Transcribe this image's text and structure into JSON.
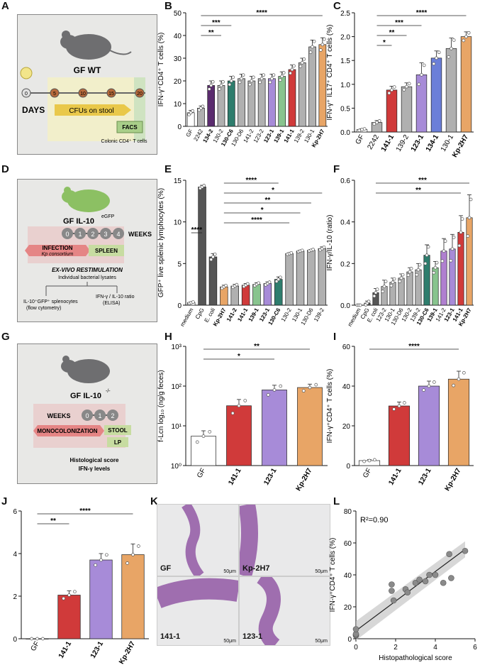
{
  "panel_labels": {
    "A": "A",
    "B": "B",
    "C": "C",
    "D": "D",
    "E": "E",
    "F": "F",
    "G": "G",
    "H": "H",
    "I": "I",
    "J": "J",
    "K": "K",
    "L": "L"
  },
  "schematic_A": {
    "title": "GF WT",
    "days_label": "DAYS",
    "timeline": [
      "0",
      "5",
      "10",
      "15",
      "20"
    ],
    "cfu_label": "CFUs on stool",
    "facs_label": "FACS",
    "facs_note": "Colonic CD4⁺ T cells"
  },
  "schematic_D": {
    "title": "GF IL-10",
    "title_sup": "eGFP",
    "weeks_label": "WEEKS",
    "weeks": [
      "0",
      "1",
      "2",
      "3",
      "4"
    ],
    "infection_label": "INFECTION",
    "infection_sub": "Kp consortium",
    "spleen_label": "SPLEEN",
    "exvivo_label": "EX-VIVO RESTIMULATION",
    "exvivo_sub": "Individual bacterial lysates",
    "left_out": "IL-10⁺GFP⁺ splenocytes",
    "left_out_sub": "(flow cytometry)",
    "right_out": "IFN-γ / IL-10 ratio",
    "right_out_sub": "(ELISA)"
  },
  "schematic_G": {
    "title": "GF IL-10",
    "title_sup": "-/-",
    "weeks_label": "WEEKS",
    "weeks": [
      "0",
      "1",
      "2"
    ],
    "mono_label": "MONOCOLONIZATION",
    "stool_label": "STOOL",
    "lp_label": "LP",
    "out1": "Histological score",
    "out2": "IFN-γ levels"
  },
  "histology_K": {
    "labels": [
      "GF",
      "Kp-2H7",
      "141-1",
      "123-1"
    ],
    "scale": "50μm"
  },
  "chart_data": [
    {
      "id": "B",
      "type": "bar",
      "ylabel": "IFN-γ⁺CD4⁺ T cells (%)",
      "ylim": [
        0,
        50
      ],
      "yticks": [
        "0",
        "10",
        "20",
        "30",
        "40",
        "50"
      ],
      "categories": [
        "GF",
        "2242",
        "134-2",
        "130-2",
        "130-C6",
        "130-D6",
        "141-2",
        "123-2",
        "123-1",
        "139-1",
        "141-1",
        "139-2",
        "130-1",
        "Kp-2H7"
      ],
      "bold": [
        "134-2",
        "130-C6",
        "123-1",
        "139-1",
        "141-1",
        "Kp-2H7"
      ],
      "values": [
        6,
        8,
        18,
        18,
        20,
        21,
        20,
        21,
        21,
        22,
        25,
        28,
        35,
        36
      ],
      "errors": [
        1,
        1,
        2,
        2,
        2,
        2,
        2,
        2,
        2,
        2,
        2,
        2,
        3,
        3
      ],
      "colors": [
        "#ffffff",
        "#b0b0b0",
        "#5b2c6f",
        "#b0b0b0",
        "#2e7d6d",
        "#b0b0b0",
        "#b0b0b0",
        "#b0b0b0",
        "#a78bd8",
        "#88c48e",
        "#d03a3a",
        "#b0b0b0",
        "#b0b0b0",
        "#e8a566"
      ],
      "sig": [
        {
          "from": 1,
          "to": 3,
          "text": "**"
        },
        {
          "from": 1,
          "to": 4,
          "text": "***"
        },
        {
          "from": 1,
          "to": 13,
          "text": "****"
        }
      ]
    },
    {
      "id": "C",
      "type": "bar",
      "ylabel": "IFN-γ⁺ IL17⁺ CD4⁺ T cells (%)",
      "ylim": [
        0,
        2.5
      ],
      "yticks": [
        "0.0",
        "0.5",
        "1.0",
        "1.5",
        "2.0",
        "2.5"
      ],
      "categories": [
        "GF",
        "2242",
        "141-1",
        "139-2",
        "123-1",
        "134-1",
        "130-1",
        "Kp-2H7"
      ],
      "bold": [
        "141-1",
        "123-1",
        "134-1",
        "Kp-2H7"
      ],
      "values": [
        0.05,
        0.2,
        0.88,
        0.95,
        1.2,
        1.55,
        1.75,
        2.0
      ],
      "errors": [
        0.02,
        0.04,
        0.08,
        0.08,
        0.25,
        0.15,
        0.22,
        0.1
      ],
      "colors": [
        "#ffffff",
        "#b0b0b0",
        "#d03a3a",
        "#b0b0b0",
        "#a78bd8",
        "#6b7fd8",
        "#b0b0b0",
        "#e8a566"
      ],
      "sig": [
        {
          "from": 1,
          "to": 2,
          "text": "*"
        },
        {
          "from": 1,
          "to": 3,
          "text": "**"
        },
        {
          "from": 1,
          "to": 4,
          "text": "***"
        },
        {
          "from": 1,
          "to": 7,
          "text": "****"
        }
      ]
    },
    {
      "id": "E",
      "type": "bar",
      "ylabel": "GFP⁺ live splenic lymphocytes (%)",
      "ylim": [
        0,
        15
      ],
      "yticks": [
        "0",
        "5",
        "10",
        "15"
      ],
      "categories": [
        "medium",
        "CpG",
        "E. coli",
        "Kp-2H7",
        "141-2",
        "141-1",
        "139-1",
        "123-1",
        "130-C6",
        "130-2",
        "130-1",
        "130-D6",
        "139-2"
      ],
      "bold": [
        "Kp-2H7",
        "141-2",
        "141-1",
        "139-1",
        "123-1",
        "130-C6"
      ],
      "values": [
        0.3,
        14.2,
        5.8,
        2.2,
        2.3,
        2.4,
        2.5,
        2.6,
        3.1,
        6.2,
        6.5,
        6.6,
        6.8
      ],
      "errors": [
        0.1,
        0.2,
        0.4,
        0.2,
        0.2,
        0.2,
        0.2,
        0.2,
        0.3,
        0.1,
        0.1,
        0.1,
        0.2
      ],
      "colors": [
        "#ffffff",
        "#555555",
        "#555555",
        "#e8a566",
        "#b0b0b0",
        "#d03a3a",
        "#88c48e",
        "#a78bd8",
        "#2e7d6d",
        "#b0b0b0",
        "#b0b0b0",
        "#b0b0b0",
        "#b0b0b0"
      ],
      "sig": [
        {
          "from": 0,
          "to": 1,
          "text": "****"
        },
        {
          "from": 3,
          "to": 9,
          "text": "****"
        },
        {
          "from": 3,
          "to": 10,
          "text": "*"
        },
        {
          "from": 3,
          "to": 11,
          "text": "**"
        },
        {
          "from": 3,
          "to": 12,
          "text": "*"
        },
        {
          "from": 3,
          "to": 8,
          "text": "****"
        }
      ]
    },
    {
      "id": "F",
      "type": "bar",
      "ylabel": "IFN-γ/IL-10 (ratio)",
      "ylim": [
        0,
        0.6
      ],
      "yticks": [
        "0.0",
        "0.2",
        "0.4",
        "0.6"
      ],
      "categories": [
        "medium",
        "CpG",
        "E. coli",
        "123-2",
        "130-1",
        "130-D6",
        "130-2",
        "139-2",
        "130-C6",
        "139-1",
        "141-2",
        "123-1",
        "141-1",
        "Kp-2H7"
      ],
      "bold": [
        "130-C6",
        "139-1",
        "123-1",
        "141-1",
        "Kp-2H7"
      ],
      "values": [
        0.0,
        0.01,
        0.06,
        0.09,
        0.11,
        0.13,
        0.16,
        0.17,
        0.24,
        0.18,
        0.26,
        0.27,
        0.35,
        0.42
      ],
      "errors": [
        0.0,
        0.01,
        0.02,
        0.03,
        0.02,
        0.02,
        0.02,
        0.03,
        0.05,
        0.03,
        0.06,
        0.07,
        0.08,
        0.11
      ],
      "colors": [
        "#ffffff",
        "#555555",
        "#555555",
        "#b0b0b0",
        "#b0b0b0",
        "#b0b0b0",
        "#b0b0b0",
        "#b0b0b0",
        "#2e7d6d",
        "#88c48e",
        "#b080d0",
        "#a78bd8",
        "#d03a3a",
        "#e8a566"
      ],
      "sig": [
        {
          "from": 2,
          "to": 12,
          "text": "**"
        },
        {
          "from": 2,
          "to": 13,
          "text": "***"
        }
      ]
    },
    {
      "id": "H",
      "type": "bar",
      "scale": "log",
      "ylabel": "f-Lcn log₁₀ (ng/g feces)",
      "ylim": [
        1,
        1000
      ],
      "yticks": [
        "10⁰",
        "10¹",
        "10²",
        "10³"
      ],
      "categories": [
        "GF",
        "141-1",
        "123-1",
        "Kp-2H7"
      ],
      "bold": [
        "141-1",
        "123-1",
        "Kp-2H7"
      ],
      "values": [
        5.5,
        32,
        80,
        92
      ],
      "errors": [
        2,
        14,
        25,
        20
      ],
      "colors": [
        "#ffffff",
        "#d03a3a",
        "#a78bd8",
        "#e8a566"
      ],
      "sig": [
        {
          "from": 0,
          "to": 2,
          "text": "*"
        },
        {
          "from": 0,
          "to": 3,
          "text": "**"
        }
      ]
    },
    {
      "id": "I",
      "type": "bar",
      "ylabel": "IFN-γ⁺CD4⁺ T cells (%)",
      "ylim": [
        0,
        60
      ],
      "yticks": [
        "0",
        "20",
        "40",
        "60"
      ],
      "categories": [
        "GF",
        "141-1",
        "123-1",
        "Kp-2H7"
      ],
      "bold": [
        "141-1",
        "123-1",
        "Kp-2H7"
      ],
      "values": [
        2.5,
        30,
        40,
        43.5
      ],
      "errors": [
        0.5,
        2,
        2.5,
        4
      ],
      "colors": [
        "#ffffff",
        "#d03a3a",
        "#a78bd8",
        "#e8a566"
      ],
      "sig": [
        {
          "from": 0,
          "to": 3,
          "text": "****"
        }
      ]
    },
    {
      "id": "J",
      "type": "bar",
      "ylabel": "Histopathological score",
      "ylim": [
        0,
        6
      ],
      "yticks": [
        "0",
        "2",
        "4",
        "6"
      ],
      "categories": [
        "GF",
        "141-1",
        "123-1",
        "Kp-2H7"
      ],
      "bold": [
        "141-1",
        "123-1",
        "Kp-2H7"
      ],
      "values": [
        0,
        2.05,
        3.7,
        3.95
      ],
      "errors": [
        0,
        0.2,
        0.3,
        0.5
      ],
      "colors": [
        "#ffffff",
        "#d03a3a",
        "#a78bd8",
        "#e8a566"
      ],
      "sig": [
        {
          "from": 0,
          "to": 1,
          "text": "**"
        },
        {
          "from": 0,
          "to": 3,
          "text": "****"
        }
      ]
    },
    {
      "id": "L",
      "type": "scatter",
      "xlabel": "Histopathological score",
      "ylabel": "IFN-γ⁺CD4⁺ T cells (%)",
      "annotation": "R²=0.90",
      "xlim": [
        0,
        6
      ],
      "ylim": [
        0,
        80
      ],
      "xticks": [
        "0",
        "2",
        "4",
        "6"
      ],
      "yticks": [
        "0",
        "20",
        "40",
        "60",
        "80"
      ],
      "x": [
        0,
        0,
        0,
        0,
        1.8,
        1.8,
        1.9,
        2.5,
        2.6,
        3.0,
        3.2,
        3.5,
        3.7,
        4.0,
        4.4,
        4.7,
        4.8,
        5.5
      ],
      "y": [
        2,
        2.5,
        3,
        6,
        34,
        30,
        24,
        31,
        29,
        35,
        37,
        36,
        40,
        40,
        35,
        53,
        38,
        55
      ],
      "fit": [
        [
          0,
          5
        ],
        [
          5.5,
          56
        ]
      ]
    }
  ]
}
